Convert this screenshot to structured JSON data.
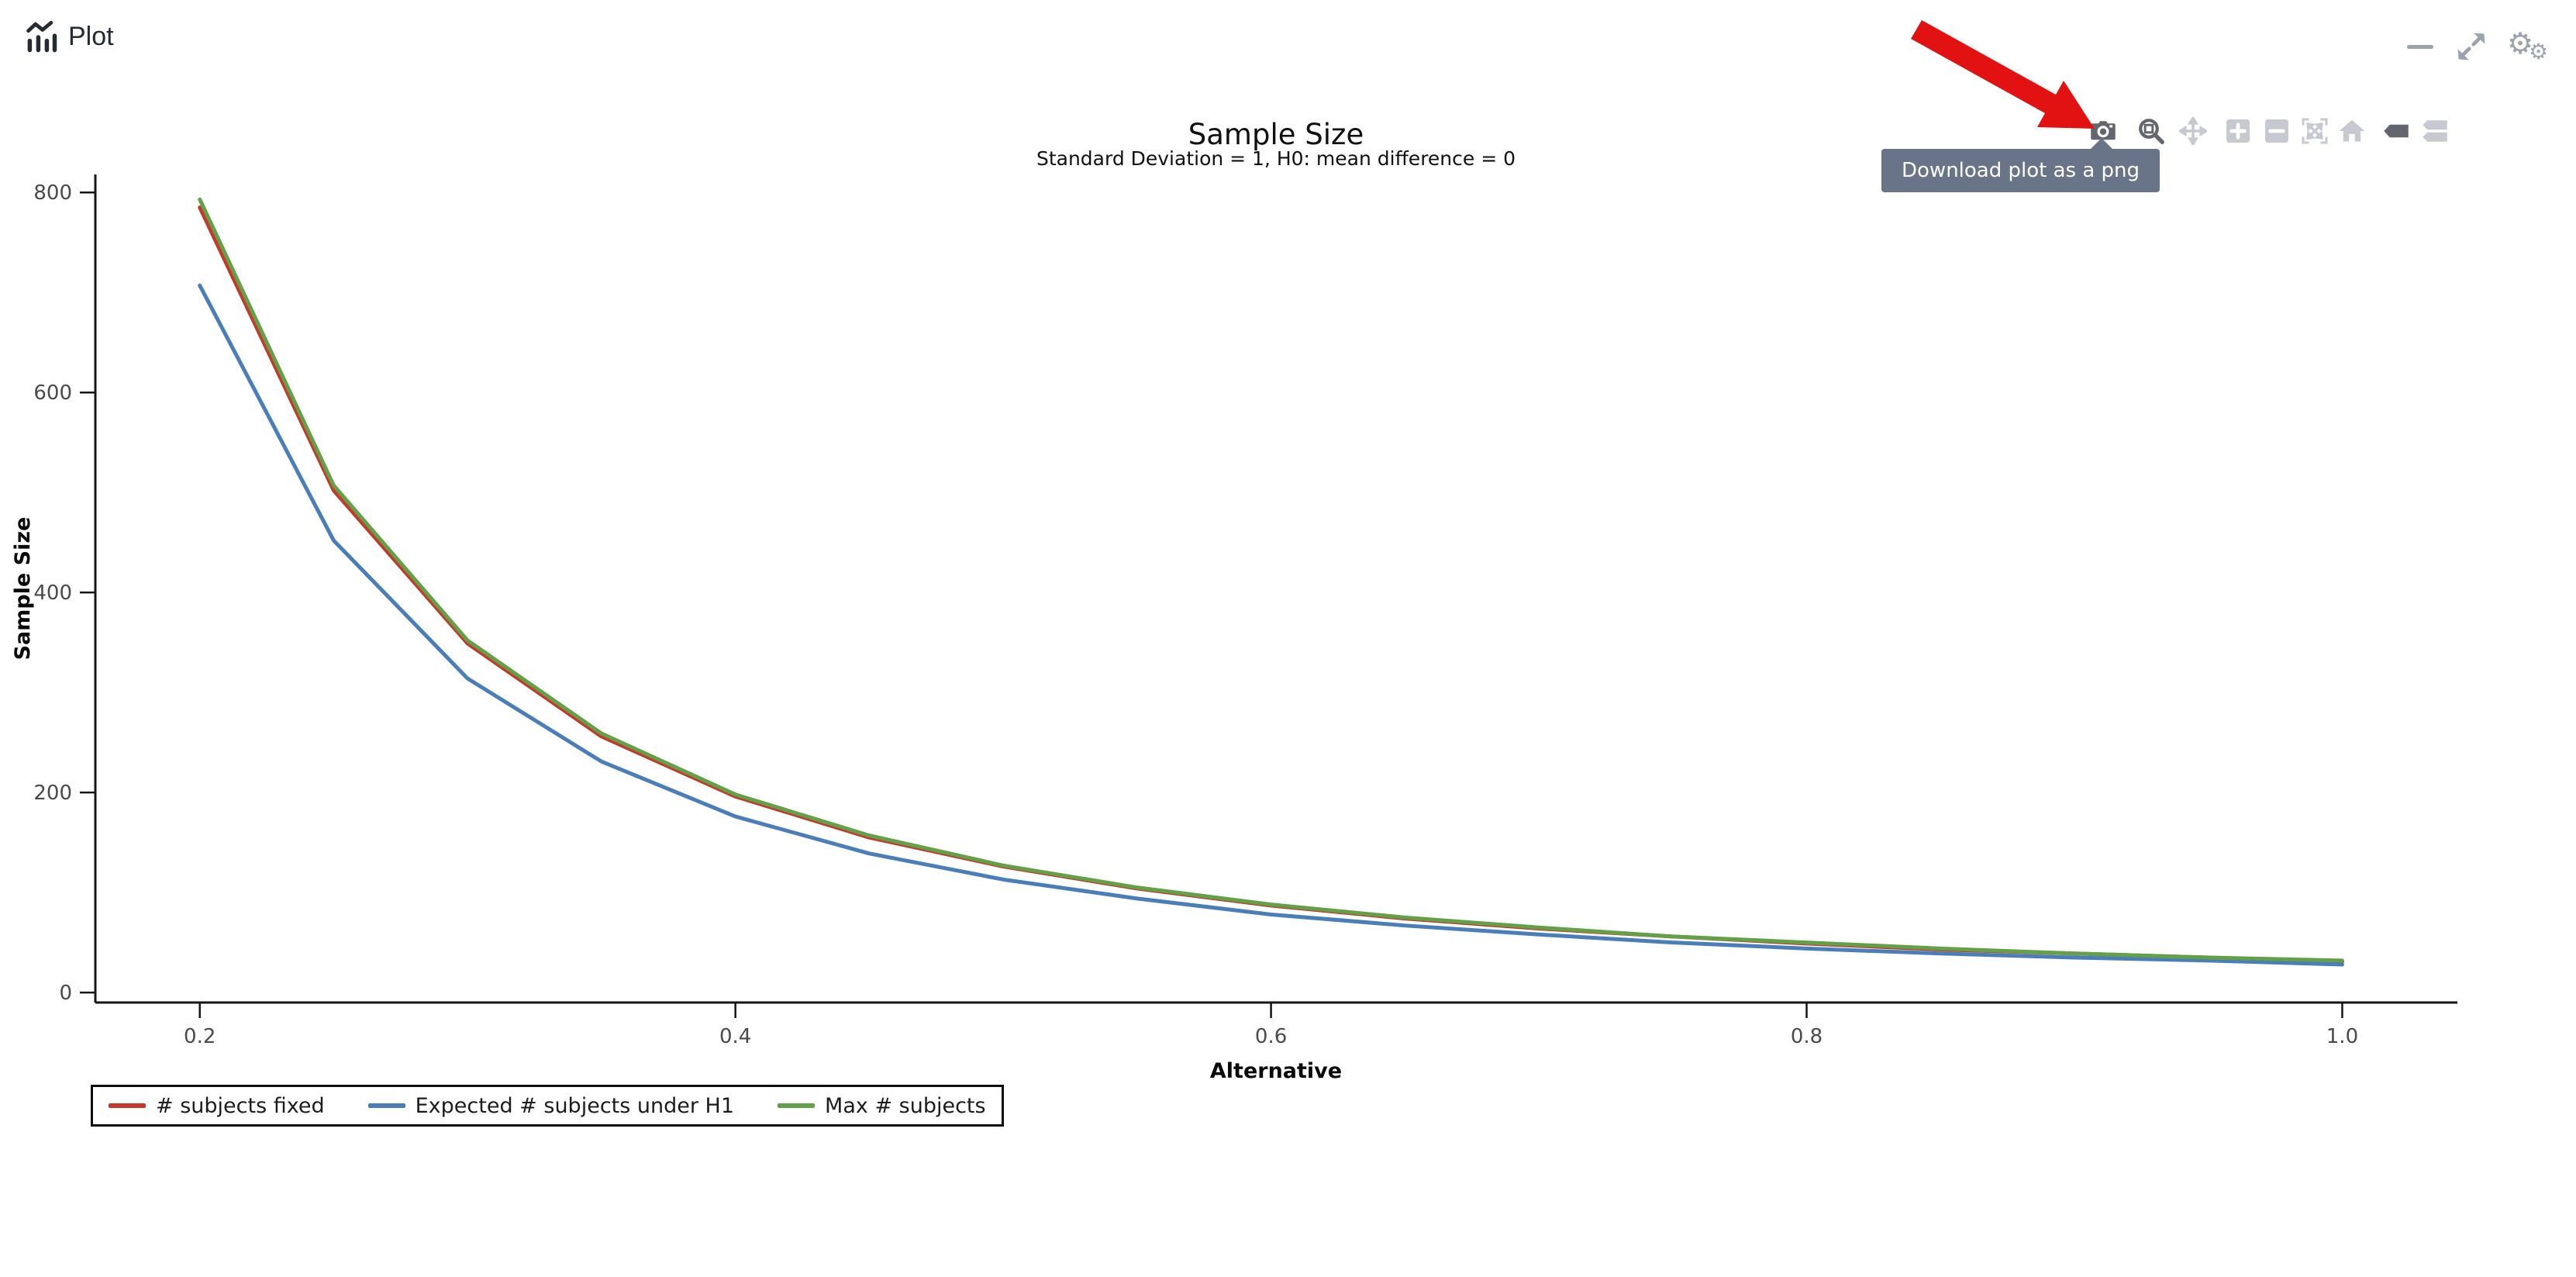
{
  "header": {
    "app_title": "Plot",
    "app_icon": "bar-chart-with-trendline-icon",
    "window_controls": [
      {
        "name": "minimize",
        "icon": "minus-icon"
      },
      {
        "name": "resize",
        "icon": "diagonal-expand-arrows-icon"
      },
      {
        "name": "settings",
        "icon": "double-gear-icon"
      }
    ]
  },
  "modebar": {
    "tooltip": "Download plot as a png",
    "buttons": [
      {
        "name": "download-png",
        "icon": "camera-icon",
        "active": true
      },
      {
        "name": "zoom",
        "icon": "magnifier-box-icon",
        "active": true
      },
      {
        "name": "pan",
        "icon": "move-arrows-icon",
        "active": false
      },
      {
        "name": "zoom-in",
        "icon": "plus-square-icon",
        "active": false
      },
      {
        "name": "zoom-out",
        "icon": "minus-square-icon",
        "active": false
      },
      {
        "name": "autoscale",
        "icon": "autoscale-icon",
        "active": false
      },
      {
        "name": "reset-axes",
        "icon": "home-icon",
        "active": false
      },
      {
        "name": "show-closest-on-hover",
        "icon": "single-tag-icon",
        "active": true
      },
      {
        "name": "compare-on-hover",
        "icon": "double-tag-icon",
        "active": false
      }
    ]
  },
  "annotation": {
    "type": "arrow",
    "color": "#e31212",
    "points_to": "download-png-button"
  },
  "chart_data": {
    "type": "line",
    "title": "Sample Size",
    "subtitle": "Standard Deviation = 1, H0: mean difference = 0",
    "xlabel": "Alternative",
    "ylabel": "Sample Size",
    "grid": false,
    "legend_position": "bottom-left",
    "xlim": [
      0.161,
      1.043
    ],
    "ylim": [
      -10,
      818
    ],
    "xticks": [
      {
        "v": 0.2,
        "t": "0.2"
      },
      {
        "v": 0.4,
        "t": "0.4"
      },
      {
        "v": 0.6,
        "t": "0.6"
      },
      {
        "v": 0.8,
        "t": "0.8"
      },
      {
        "v": 1.0,
        "t": "1.0"
      }
    ],
    "yticks": [
      {
        "v": 0,
        "t": "0"
      },
      {
        "v": 200,
        "t": "200"
      },
      {
        "v": 400,
        "t": "400"
      },
      {
        "v": 600,
        "t": "600"
      },
      {
        "v": 800,
        "t": "800"
      }
    ],
    "x": [
      0.2,
      0.25,
      0.3,
      0.35,
      0.4,
      0.45,
      0.5,
      0.55,
      0.6,
      0.65,
      0.7,
      0.75,
      0.8,
      0.85,
      0.9,
      0.95,
      1.0
    ],
    "series": [
      {
        "name": "# subjects fixed",
        "color": "#c5392b",
        "values": [
          785,
          502,
          349,
          256,
          196,
          155,
          126,
          104,
          87,
          74,
          64,
          56,
          49,
          43,
          39,
          35,
          31
        ]
      },
      {
        "name": "Expected # subjects under H1",
        "color": "#4a7ebb",
        "values": [
          707,
          452,
          314,
          231,
          176,
          139,
          113,
          94,
          78,
          67,
          58,
          50,
          44,
          39,
          35,
          32,
          28
        ]
      },
      {
        "name": "Max # subjects",
        "color": "#62a147",
        "values": [
          793,
          507,
          352,
          259,
          198,
          157,
          127,
          105,
          88,
          75,
          65,
          56,
          50,
          44,
          39,
          35,
          32
        ]
      }
    ]
  }
}
